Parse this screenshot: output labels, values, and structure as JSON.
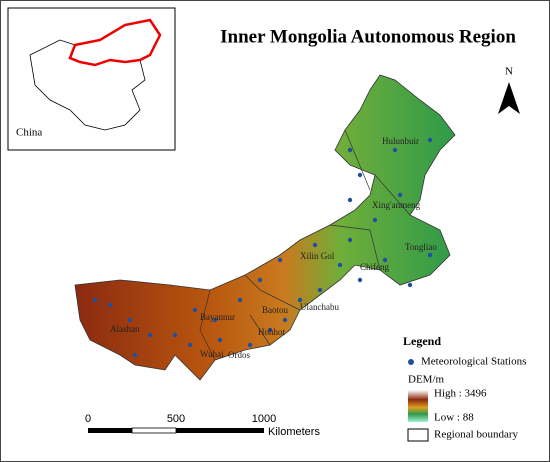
{
  "title": "Inner Mongolia Autonomous Region",
  "inset": {
    "label": "China"
  },
  "north_arrow": {
    "label": "N"
  },
  "places": [
    "Hulunbuir",
    "Xing'anmeng",
    "Tongliao",
    "Chifeng",
    "Xilin Gol",
    "Ulanchabu",
    "Baotou",
    "Hohhot",
    "Bayannur",
    "Alashan",
    "Wuhai",
    "Ordos"
  ],
  "legend": {
    "title": "Legend",
    "stations": "Meteorological Stations",
    "dem_title": "DEM/m",
    "high": "High : 3496",
    "low": "Low : 88",
    "boundary": "Regional boundary"
  },
  "scale_bar": {
    "ticks": [
      "0",
      "500",
      "1000"
    ],
    "unit": "Kilometers"
  }
}
